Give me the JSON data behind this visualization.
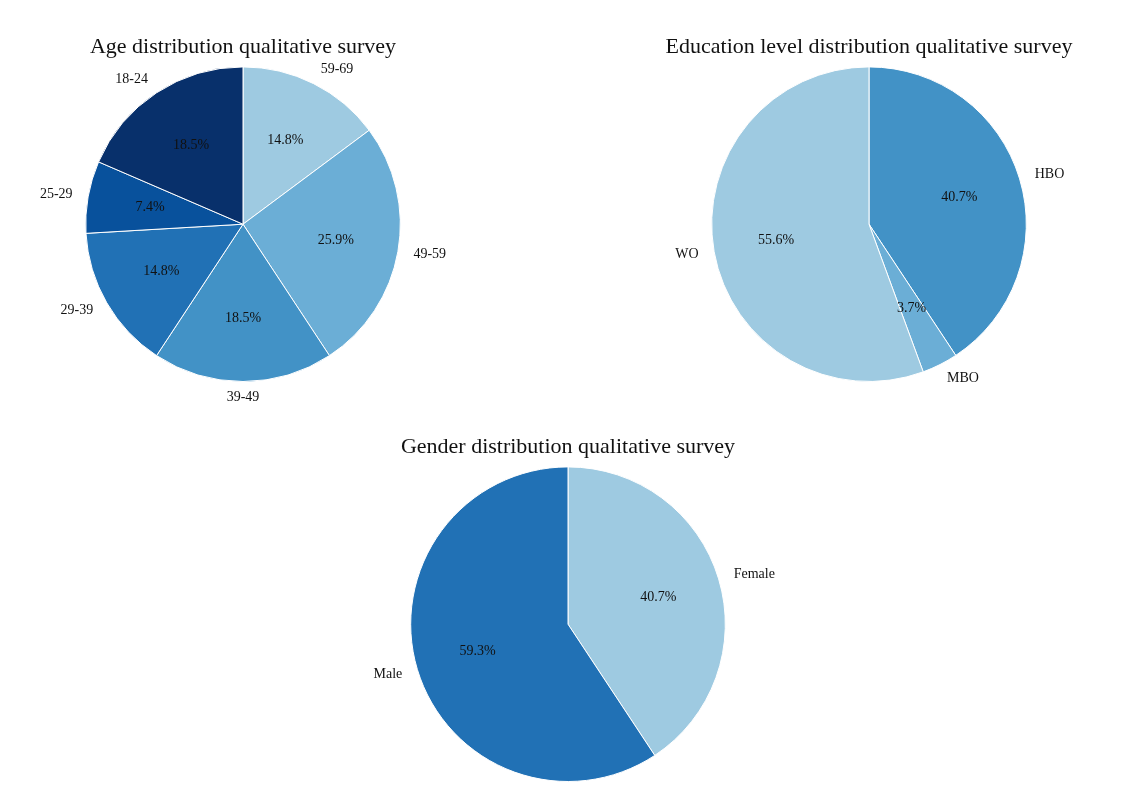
{
  "chart_data": [
    {
      "type": "pie",
      "title": "Age distribution qualitative survey",
      "categories": [
        "59-69",
        "49-59",
        "39-49",
        "29-39",
        "25-29",
        "18-24"
      ],
      "values": [
        14.8,
        25.9,
        18.5,
        14.8,
        7.4,
        18.5
      ],
      "colors": [
        "#9ecae1",
        "#6baed6",
        "#4292c6",
        "#2171b5",
        "#08519c",
        "#08306b"
      ],
      "value_labels": [
        "14.8%",
        "25.9%",
        "18.5%",
        "14.8%",
        "7.4%",
        "18.5%"
      ]
    },
    {
      "type": "pie",
      "title": "Education level distribution qualitative survey",
      "categories": [
        "HBO",
        "MBO",
        "WO"
      ],
      "values": [
        40.7,
        3.7,
        55.6
      ],
      "colors": [
        "#4292c6",
        "#6baed6",
        "#9ecae1"
      ],
      "value_labels": [
        "40.7%",
        "3.7%",
        "55.6%"
      ]
    },
    {
      "type": "pie",
      "title": "Gender distribution qualitative survey",
      "categories": [
        "Female",
        "Male"
      ],
      "values": [
        40.7,
        59.3
      ],
      "colors": [
        "#9ecae1",
        "#2171b5"
      ],
      "value_labels": [
        "40.7%",
        "59.3%"
      ]
    }
  ]
}
